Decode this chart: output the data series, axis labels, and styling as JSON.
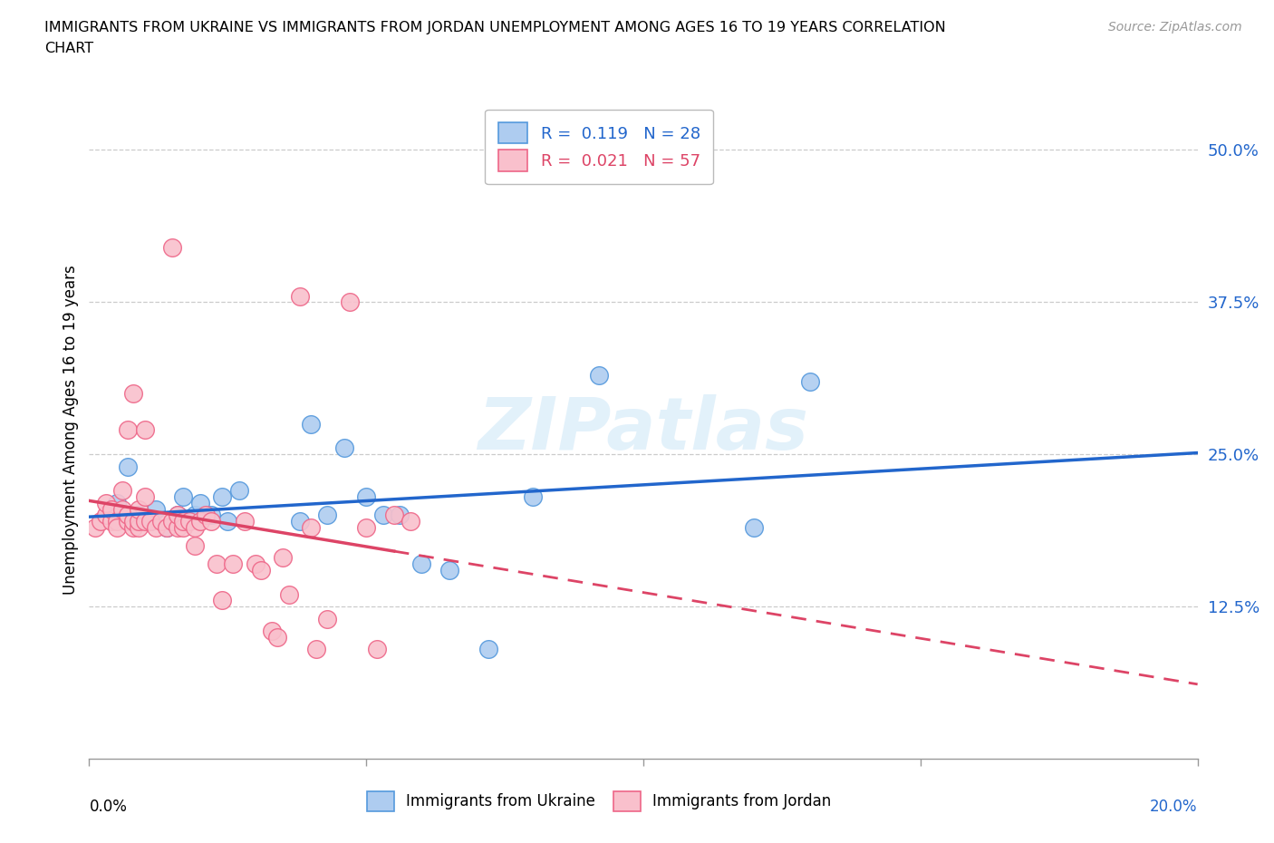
{
  "title_line1": "IMMIGRANTS FROM UKRAINE VS IMMIGRANTS FROM JORDAN UNEMPLOYMENT AMONG AGES 16 TO 19 YEARS CORRELATION",
  "title_line2": "CHART",
  "source": "Source: ZipAtlas.com",
  "ylabel": "Unemployment Among Ages 16 to 19 years",
  "xlim": [
    0.0,
    0.2
  ],
  "ylim": [
    0.0,
    0.54
  ],
  "yticks": [
    0.125,
    0.25,
    0.375,
    0.5
  ],
  "ytick_labels": [
    "12.5%",
    "25.0%",
    "37.5%",
    "50.0%"
  ],
  "watermark": "ZIPatlas",
  "legend_ukraine": "R =  0.119   N = 28",
  "legend_jordan": "R =  0.021   N = 57",
  "ukraine_color": "#aeccf0",
  "jordan_color": "#f9c0cc",
  "ukraine_edge_color": "#5599dd",
  "jordan_edge_color": "#ee6688",
  "ukraine_line_color": "#2266cc",
  "jordan_line_color": "#dd4466",
  "ukraine_scatter_x": [
    0.005,
    0.007,
    0.009,
    0.011,
    0.012,
    0.014,
    0.016,
    0.017,
    0.019,
    0.02,
    0.022,
    0.024,
    0.025,
    0.027,
    0.038,
    0.04,
    0.043,
    0.046,
    0.05,
    0.053,
    0.056,
    0.06,
    0.065,
    0.072,
    0.08,
    0.092,
    0.12,
    0.13
  ],
  "ukraine_scatter_y": [
    0.21,
    0.24,
    0.2,
    0.195,
    0.205,
    0.19,
    0.2,
    0.215,
    0.2,
    0.21,
    0.2,
    0.215,
    0.195,
    0.22,
    0.195,
    0.275,
    0.2,
    0.255,
    0.215,
    0.2,
    0.2,
    0.16,
    0.155,
    0.09,
    0.215,
    0.315,
    0.19,
    0.31
  ],
  "jordan_scatter_x": [
    0.001,
    0.002,
    0.003,
    0.003,
    0.004,
    0.004,
    0.005,
    0.005,
    0.006,
    0.006,
    0.007,
    0.007,
    0.007,
    0.008,
    0.008,
    0.008,
    0.009,
    0.009,
    0.009,
    0.01,
    0.01,
    0.01,
    0.011,
    0.012,
    0.013,
    0.014,
    0.015,
    0.015,
    0.016,
    0.016,
    0.017,
    0.017,
    0.018,
    0.019,
    0.019,
    0.02,
    0.021,
    0.022,
    0.023,
    0.024,
    0.026,
    0.028,
    0.03,
    0.031,
    0.033,
    0.034,
    0.035,
    0.036,
    0.038,
    0.04,
    0.041,
    0.043,
    0.047,
    0.05,
    0.052,
    0.055,
    0.058
  ],
  "jordan_scatter_y": [
    0.19,
    0.195,
    0.2,
    0.21,
    0.195,
    0.205,
    0.195,
    0.19,
    0.205,
    0.22,
    0.195,
    0.2,
    0.27,
    0.19,
    0.195,
    0.3,
    0.19,
    0.195,
    0.205,
    0.195,
    0.27,
    0.215,
    0.195,
    0.19,
    0.195,
    0.19,
    0.195,
    0.42,
    0.19,
    0.2,
    0.19,
    0.195,
    0.195,
    0.175,
    0.19,
    0.195,
    0.2,
    0.195,
    0.16,
    0.13,
    0.16,
    0.195,
    0.16,
    0.155,
    0.105,
    0.1,
    0.165,
    0.135,
    0.38,
    0.19,
    0.09,
    0.115,
    0.375,
    0.19,
    0.09,
    0.2,
    0.195
  ],
  "background_color": "#ffffff",
  "grid_color": "#cccccc"
}
